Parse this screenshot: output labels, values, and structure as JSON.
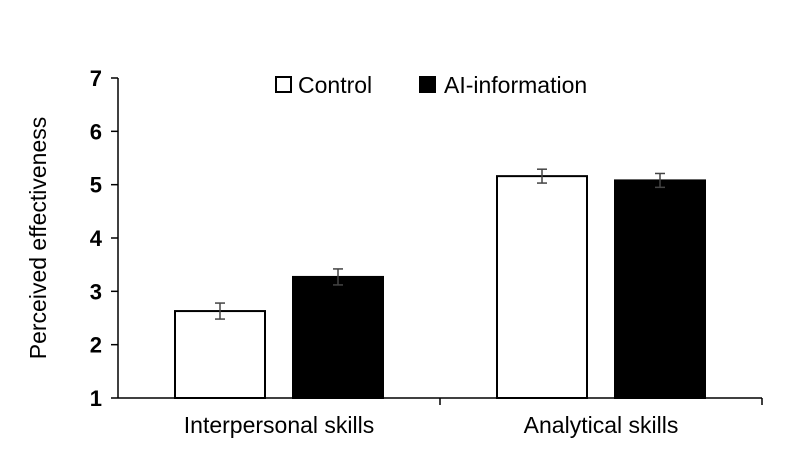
{
  "chart_data": {
    "type": "bar",
    "title": "",
    "xlabel": "",
    "ylabel": "Perceived effectiveness",
    "ylim": [
      1,
      7
    ],
    "yticks": [
      1,
      2,
      3,
      4,
      5,
      6,
      7
    ],
    "categories": [
      "Interpersonal skills",
      "Analytical skills"
    ],
    "series": [
      {
        "name": "Control",
        "values": [
          2.63,
          5.16
        ],
        "errors": [
          0.15,
          0.13
        ],
        "fill": "#ffffff",
        "stroke": "#000000"
      },
      {
        "name": "AI-information",
        "values": [
          3.27,
          5.08
        ],
        "errors": [
          0.15,
          0.13
        ],
        "fill": "#000000",
        "stroke": "#000000"
      }
    ],
    "legend_position": "top-center",
    "grid": false
  }
}
